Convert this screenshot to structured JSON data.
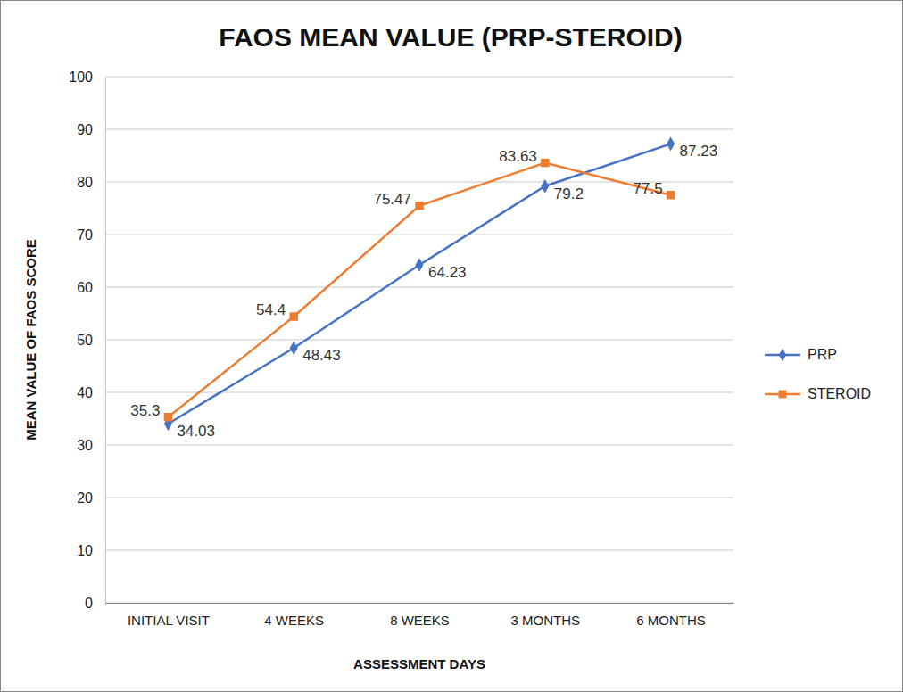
{
  "chart_data": {
    "type": "line",
    "title": "FAOS MEAN VALUE (PRP-STEROID)",
    "x_label": "ASSESSMENT DAYS",
    "y_label": "MEAN VALUE OF FAOS SCORE",
    "categories": [
      "INITIAL VISIT",
      "4 WEEKS",
      "8 WEEKS",
      "3 MONTHS",
      "6 MONTHS"
    ],
    "series": [
      {
        "name": "PRP",
        "color": "#4472c4",
        "marker": "diamond",
        "values": [
          34.03,
          48.43,
          64.23,
          79.2,
          87.23
        ]
      },
      {
        "name": "STEROID",
        "color": "#ed7d31",
        "marker": "square",
        "values": [
          35.3,
          54.4,
          75.47,
          83.63,
          77.5
        ]
      }
    ],
    "ylim": [
      0,
      100
    ],
    "yticks": [
      0,
      10,
      20,
      30,
      40,
      50,
      60,
      70,
      80,
      90,
      100
    ],
    "grid": true,
    "legend": "right",
    "data_labels": true
  }
}
